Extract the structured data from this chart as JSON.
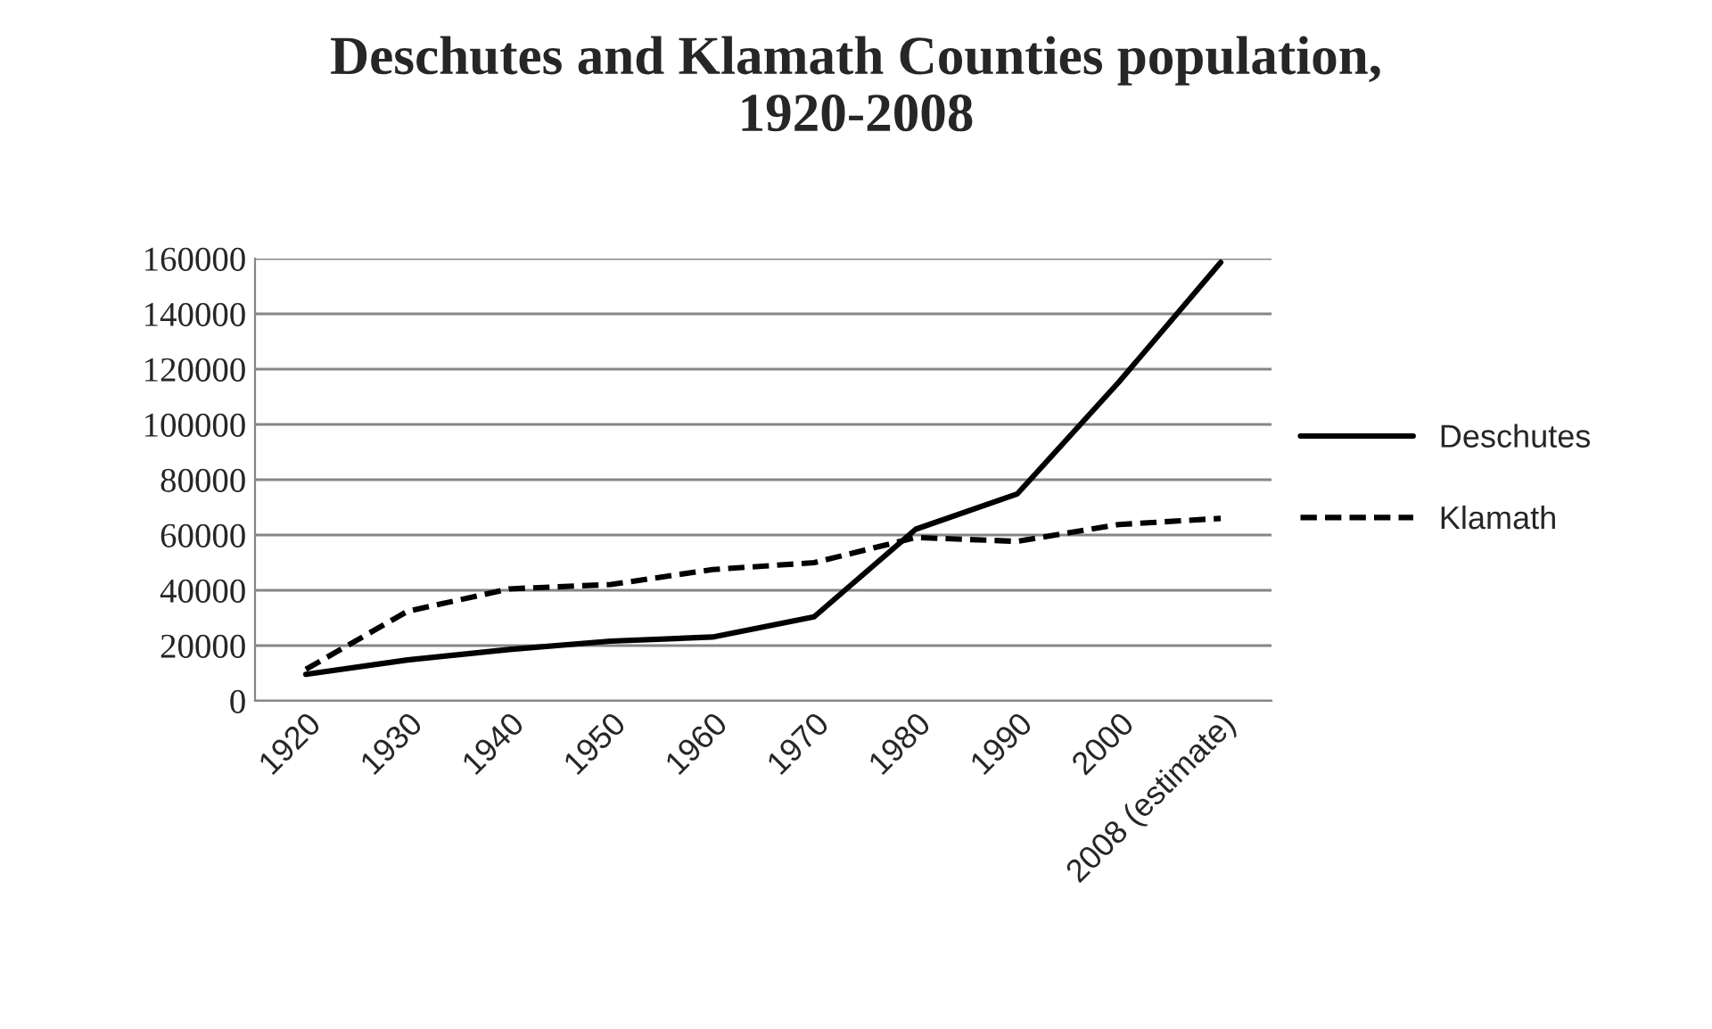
{
  "chart_data": {
    "type": "line",
    "title": "Deschutes and Klamath Counties population,\n1920-2008",
    "categories": [
      "1920",
      "1930",
      "1940",
      "1950",
      "1960",
      "1970",
      "1980",
      "1990",
      "2000",
      "2008 (estimate)"
    ],
    "series": [
      {
        "name": "Deschutes",
        "color": "#000000",
        "line_style": "solid",
        "values": [
          9600,
          14800,
          18600,
          21600,
          23100,
          30400,
          62100,
          74900,
          115400,
          158600
        ]
      },
      {
        "name": "Klamath",
        "color": "#000000",
        "line_style": "dashed",
        "values": [
          11400,
          32400,
          40500,
          42100,
          47500,
          50000,
          59100,
          57700,
          63800,
          66000
        ]
      }
    ],
    "ylim": [
      0,
      160000
    ],
    "yticks": [
      0,
      20000,
      40000,
      60000,
      80000,
      100000,
      120000,
      140000,
      160000
    ],
    "grid": "y",
    "legend": "right"
  }
}
